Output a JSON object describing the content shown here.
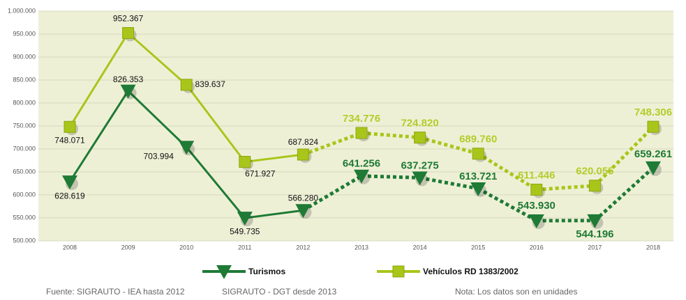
{
  "chart_data": {
    "type": "line",
    "categories": [
      "2008",
      "2009",
      "2010",
      "2011",
      "2012",
      "2013",
      "2014",
      "2015",
      "2016",
      "2017",
      "2018"
    ],
    "series": [
      {
        "name": "Turismos",
        "color": "#1e7a35",
        "marker": "triangle-down",
        "values": [
          628619,
          826353,
          703994,
          549735,
          566280,
          641256,
          637275,
          613721,
          543930,
          544196,
          659261
        ],
        "value_labels": [
          "628.619",
          "826.353",
          "703.994",
          "549.735",
          "566.280",
          "641.256",
          "637.275",
          "613.721",
          "543.930",
          "544.196",
          "659.261"
        ]
      },
      {
        "name": "Vehículos RD 1383/2002",
        "color": "#a8c61a",
        "label_color": "#b3cd2a",
        "marker": "square",
        "values": [
          748071,
          952367,
          839637,
          671927,
          687824,
          734776,
          724820,
          689760,
          611446,
          620055,
          748306
        ],
        "value_labels": [
          "748.071",
          "952.367",
          "839.637",
          "671.927",
          "687.824",
          "734.776",
          "724.820",
          "689.760",
          "611.446",
          "620.055",
          "748.306"
        ]
      }
    ],
    "solid_through": "2012",
    "ylim": [
      500000,
      1000000
    ],
    "yticks": [
      {
        "value": 500000,
        "label": "500.000"
      },
      {
        "value": 550000,
        "label": "550.000"
      },
      {
        "value": 600000,
        "label": "600.000"
      },
      {
        "value": 650000,
        "label": "650.000"
      },
      {
        "value": 700000,
        "label": "700.000"
      },
      {
        "value": 750000,
        "label": "750.000"
      },
      {
        "value": 800000,
        "label": "800.000"
      },
      {
        "value": 850000,
        "label": "850.000"
      },
      {
        "value": 900000,
        "label": "900.000"
      },
      {
        "value": 950000,
        "label": "950.000"
      },
      {
        "value": 1000000,
        "label": "1.000.000"
      }
    ],
    "grid": true,
    "legend": "bottom",
    "notes": [
      "Fuente: SIGRAUTO - IEA hasta 2012",
      "SIGRAUTO - DGT desde 2013",
      "Nota: Los datos son en unidades"
    ]
  }
}
